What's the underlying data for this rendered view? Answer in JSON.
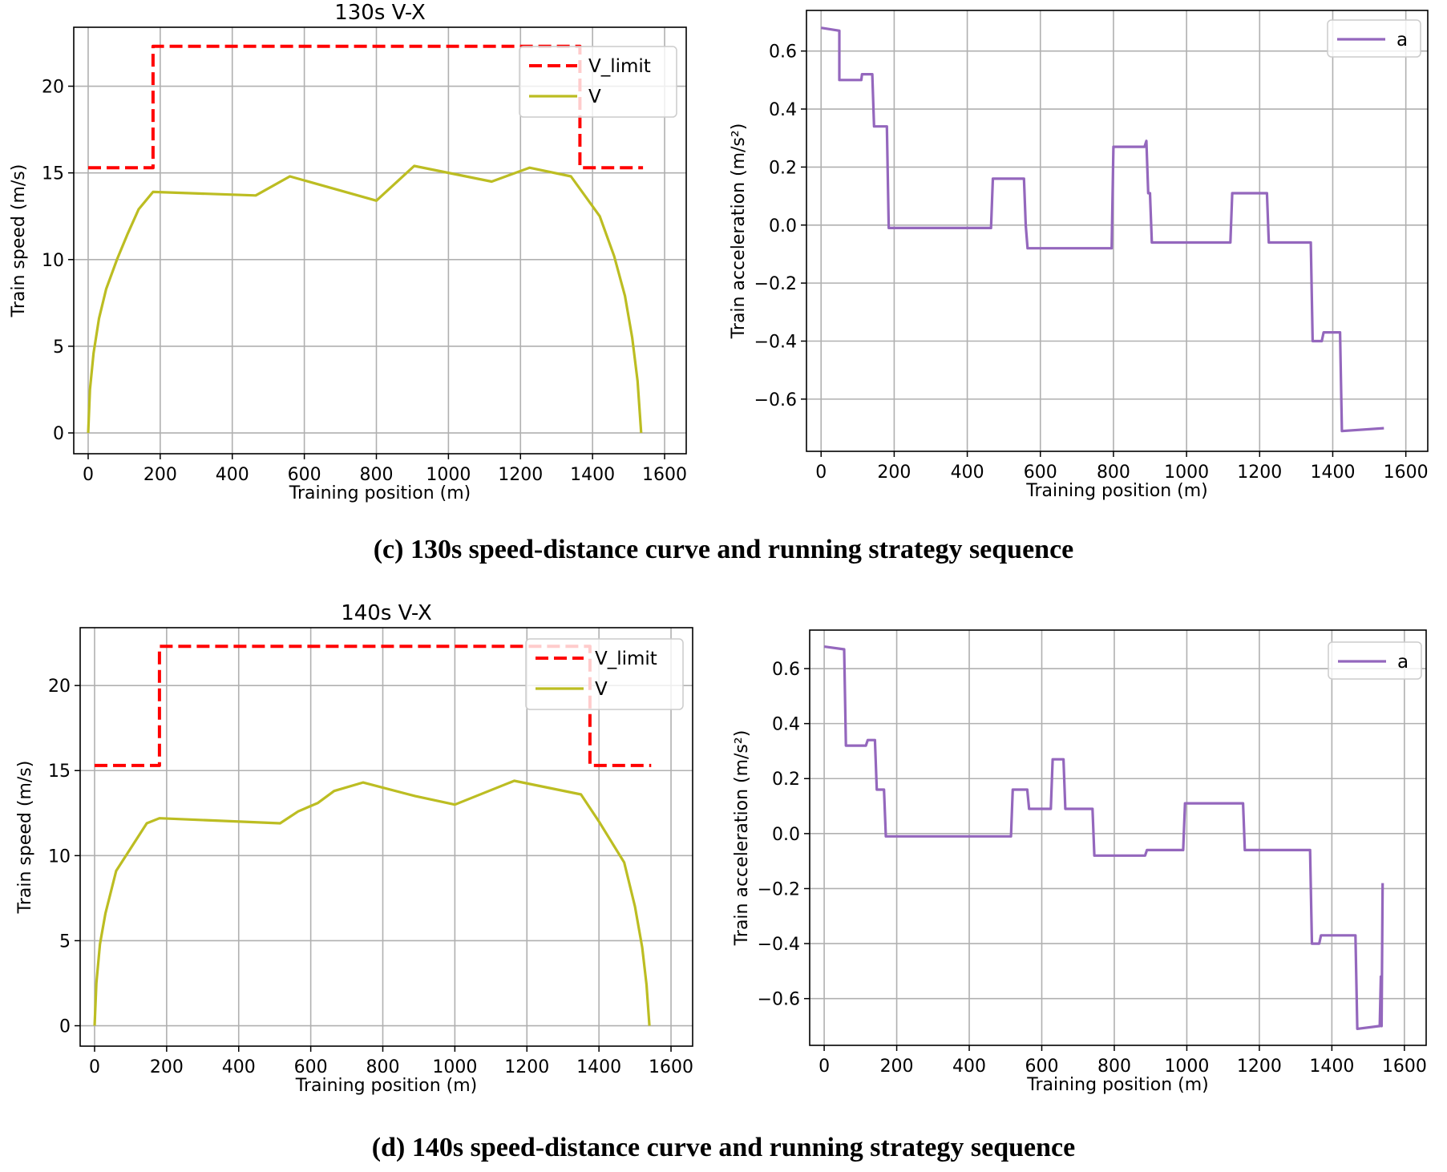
{
  "chart_data": [
    {
      "id": "c-speed",
      "type": "line",
      "title": "130s V-X",
      "xlabel": "Training position (m)",
      "ylabel": "Train speed (m/s)",
      "xlim": [
        -40,
        1660
      ],
      "ylim": [
        -1.2,
        23.4
      ],
      "xticks": [
        0,
        200,
        400,
        600,
        800,
        1000,
        1200,
        1400,
        1600
      ],
      "yticks": [
        0,
        5,
        10,
        15,
        20
      ],
      "grid": true,
      "legend": "top-right",
      "series": [
        {
          "name": "V_limit",
          "color": "#ff0000",
          "style": "dashed",
          "x": [
            0,
            180,
            180,
            1365,
            1365,
            1540
          ],
          "y": [
            15.3,
            15.3,
            22.3,
            22.3,
            15.3,
            15.3
          ]
        },
        {
          "name": "V",
          "color": "#bcbd22",
          "style": "solid",
          "x": [
            0,
            5,
            15,
            30,
            50,
            80,
            110,
            140,
            180,
            465,
            560,
            800,
            905,
            1120,
            1225,
            1340,
            1420,
            1460,
            1490,
            1510,
            1525,
            1535
          ],
          "y": [
            0,
            2.5,
            4.6,
            6.6,
            8.3,
            10.0,
            11.5,
            12.9,
            13.9,
            13.7,
            14.8,
            13.4,
            15.4,
            14.5,
            15.3,
            14.8,
            12.5,
            10.2,
            7.9,
            5.5,
            3.0,
            0
          ]
        }
      ]
    },
    {
      "id": "c-accel",
      "type": "line",
      "title": "",
      "xlabel": "Training position (m)",
      "ylabel": "Train acceleration (m/s²)",
      "xlim": [
        -40,
        1660
      ],
      "ylim": [
        -0.78,
        0.74
      ],
      "xticks": [
        0,
        200,
        400,
        600,
        800,
        1000,
        1200,
        1400,
        1600
      ],
      "yticks": [
        0.6,
        0.4,
        0.2,
        0.0,
        -0.2,
        -0.4,
        -0.6
      ],
      "ytick_labels": [
        "0.6",
        "0.4",
        "0.2",
        "0.0",
        "−0.2",
        "−0.4",
        "−0.6"
      ],
      "grid": true,
      "legend": "top-right",
      "series": [
        {
          "name": "a",
          "color": "#9467bd",
          "style": "solid",
          "x": [
            0,
            50,
            50,
            110,
            112,
            140,
            145,
            180,
            185,
            465,
            470,
            555,
            560,
            565,
            570,
            795,
            800,
            885,
            890,
            895,
            900,
            905,
            1120,
            1125,
            1220,
            1225,
            1340,
            1345,
            1370,
            1375,
            1420,
            1425,
            1540
          ],
          "y": [
            0.68,
            0.67,
            0.5,
            0.5,
            0.52,
            0.52,
            0.34,
            0.34,
            -0.01,
            -0.01,
            0.16,
            0.16,
            0.0,
            -0.08,
            -0.08,
            -0.08,
            0.27,
            0.27,
            0.29,
            0.11,
            0.11,
            -0.06,
            -0.06,
            0.11,
            0.11,
            -0.06,
            -0.06,
            -0.4,
            -0.4,
            -0.37,
            -0.37,
            -0.71,
            -0.7
          ]
        }
      ]
    },
    {
      "id": "d-speed",
      "type": "line",
      "title": "140s V-X",
      "xlabel": "Training position (m)",
      "ylabel": "Train speed (m/s)",
      "xlim": [
        -40,
        1660
      ],
      "ylim": [
        -1.2,
        23.4
      ],
      "xticks": [
        0,
        200,
        400,
        600,
        800,
        1000,
        1200,
        1400,
        1600
      ],
      "yticks": [
        0,
        5,
        10,
        15,
        20
      ],
      "grid": true,
      "legend": "top-right",
      "series": [
        {
          "name": "V_limit",
          "color": "#ff0000",
          "style": "dashed",
          "x": [
            0,
            180,
            180,
            1375,
            1375,
            1545
          ],
          "y": [
            15.3,
            15.3,
            22.3,
            22.3,
            15.3,
            15.3
          ]
        },
        {
          "name": "V",
          "color": "#bcbd22",
          "style": "solid",
          "x": [
            0,
            5,
            15,
            30,
            60,
            145,
            180,
            515,
            565,
            620,
            665,
            745,
            890,
            1000,
            1165,
            1350,
            1400,
            1470,
            1500,
            1520,
            1532,
            1540
          ],
          "y": [
            0,
            2.5,
            4.8,
            6.6,
            9.1,
            11.9,
            12.2,
            11.9,
            12.6,
            13.1,
            13.8,
            14.3,
            13.5,
            13.0,
            14.4,
            13.6,
            12.0,
            9.6,
            7.0,
            4.6,
            2.4,
            0
          ]
        }
      ]
    },
    {
      "id": "d-accel",
      "type": "line",
      "title": "",
      "xlabel": "Training position (m)",
      "ylabel": "Train acceleration (m/s²)",
      "xlim": [
        -40,
        1660
      ],
      "ylim": [
        -0.77,
        0.74
      ],
      "xticks": [
        0,
        200,
        400,
        600,
        800,
        1000,
        1200,
        1400,
        1600
      ],
      "yticks": [
        0.6,
        0.4,
        0.2,
        0.0,
        -0.2,
        -0.4,
        -0.6
      ],
      "ytick_labels": [
        "0.6",
        "0.4",
        "0.2",
        "0.0",
        "−0.2",
        "−0.4",
        "−0.6"
      ],
      "grid": true,
      "legend": "top-right",
      "series": [
        {
          "name": "a",
          "color": "#9467bd",
          "style": "solid",
          "x": [
            0,
            55,
            60,
            115,
            120,
            140,
            145,
            165,
            170,
            515,
            520,
            560,
            565,
            625,
            630,
            660,
            665,
            740,
            745,
            885,
            890,
            990,
            995,
            1155,
            1160,
            1340,
            1345,
            1365,
            1370,
            1465,
            1470,
            1530,
            1532,
            1535,
            1537,
            1540
          ],
          "y": [
            0.68,
            0.67,
            0.32,
            0.32,
            0.34,
            0.34,
            0.16,
            0.16,
            -0.01,
            -0.01,
            0.16,
            0.16,
            0.09,
            0.09,
            0.27,
            0.27,
            0.09,
            0.09,
            -0.08,
            -0.08,
            -0.06,
            -0.06,
            0.11,
            0.11,
            -0.06,
            -0.06,
            -0.4,
            -0.4,
            -0.37,
            -0.37,
            -0.71,
            -0.7,
            -0.7,
            -0.52,
            -0.7,
            -0.18
          ]
        }
      ]
    }
  ],
  "captions": {
    "c": "(c) 130s speed-distance curve and running strategy sequence",
    "d": "(d) 140s speed-distance curve and running strategy sequence"
  },
  "colors": {
    "grid": "#b0b0b0",
    "axes": "#000000",
    "v_limit": "#ff0000",
    "v": "#bcbd22",
    "accel": "#9467bd"
  }
}
